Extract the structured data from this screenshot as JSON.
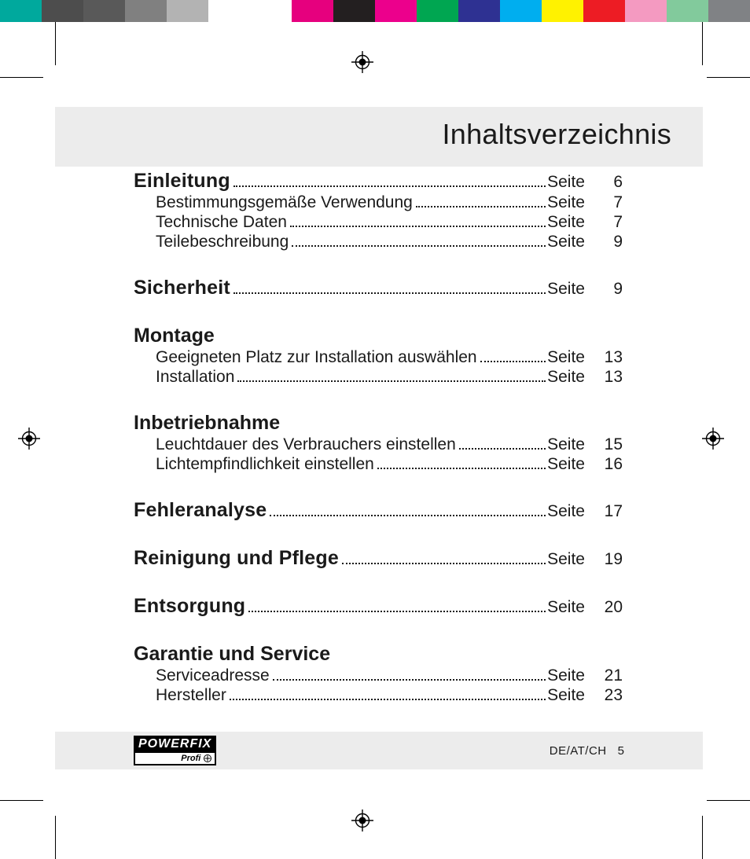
{
  "header": {
    "title": "Inhaltsverzeichnis"
  },
  "page_word": "Seite",
  "sections": [
    {
      "heading": "Einleitung",
      "heading_page": "6",
      "subs": [
        {
          "label": "Bestimmungsgemäße Verwendung",
          "page": "7"
        },
        {
          "label": "Technische Daten",
          "page": "7"
        },
        {
          "label": "Teilebeschreibung",
          "page": "9"
        }
      ]
    },
    {
      "heading": "Sicherheit",
      "heading_page": "9",
      "subs": []
    },
    {
      "heading": "Montage",
      "heading_page": null,
      "subs": [
        {
          "label": "Geeigneten Platz zur Installation auswählen",
          "page": "13"
        },
        {
          "label": "Installation",
          "page": "13"
        }
      ]
    },
    {
      "heading": "Inbetriebnahme",
      "heading_page": null,
      "subs": [
        {
          "label": "Leuchtdauer des Verbrauchers einstellen",
          "page": "15"
        },
        {
          "label": "Lichtempfindlichkeit einstellen",
          "page": "16"
        }
      ]
    },
    {
      "heading": "Fehleranalyse",
      "heading_page": "17",
      "subs": []
    },
    {
      "heading": "Reinigung und Pflege",
      "heading_page": "19",
      "subs": []
    },
    {
      "heading": "Entsorgung",
      "heading_page": "20",
      "subs": []
    },
    {
      "heading": "Garantie und Service",
      "heading_page": null,
      "subs": [
        {
          "label": "Serviceadresse",
          "page": "21"
        },
        {
          "label": "Hersteller",
          "page": "23"
        }
      ]
    }
  ],
  "footer": {
    "logo_top": "POWERFIX",
    "logo_bottom": "Profi",
    "locale": "DE/AT/CH",
    "page_number": "5"
  },
  "colorbar": [
    "#00a99d",
    "#4d4d4d",
    "#595959",
    "#808080",
    "#b3b3b3",
    "#ffffff",
    "#ffffff",
    "#e6007e",
    "#231f20",
    "#ec008c",
    "#00a651",
    "#2e3192",
    "#00aeef",
    "#fff200",
    "#ed1c24",
    "#f49ac1",
    "#82ca9c",
    "#808285"
  ],
  "style": {
    "background": "#ffffff",
    "band_bg": "#ececec",
    "text_color": "#1a1a1a",
    "title_fontsize": 36,
    "heading_fontsize": 25,
    "body_fontsize": 21,
    "footer_fontsize": 15
  }
}
